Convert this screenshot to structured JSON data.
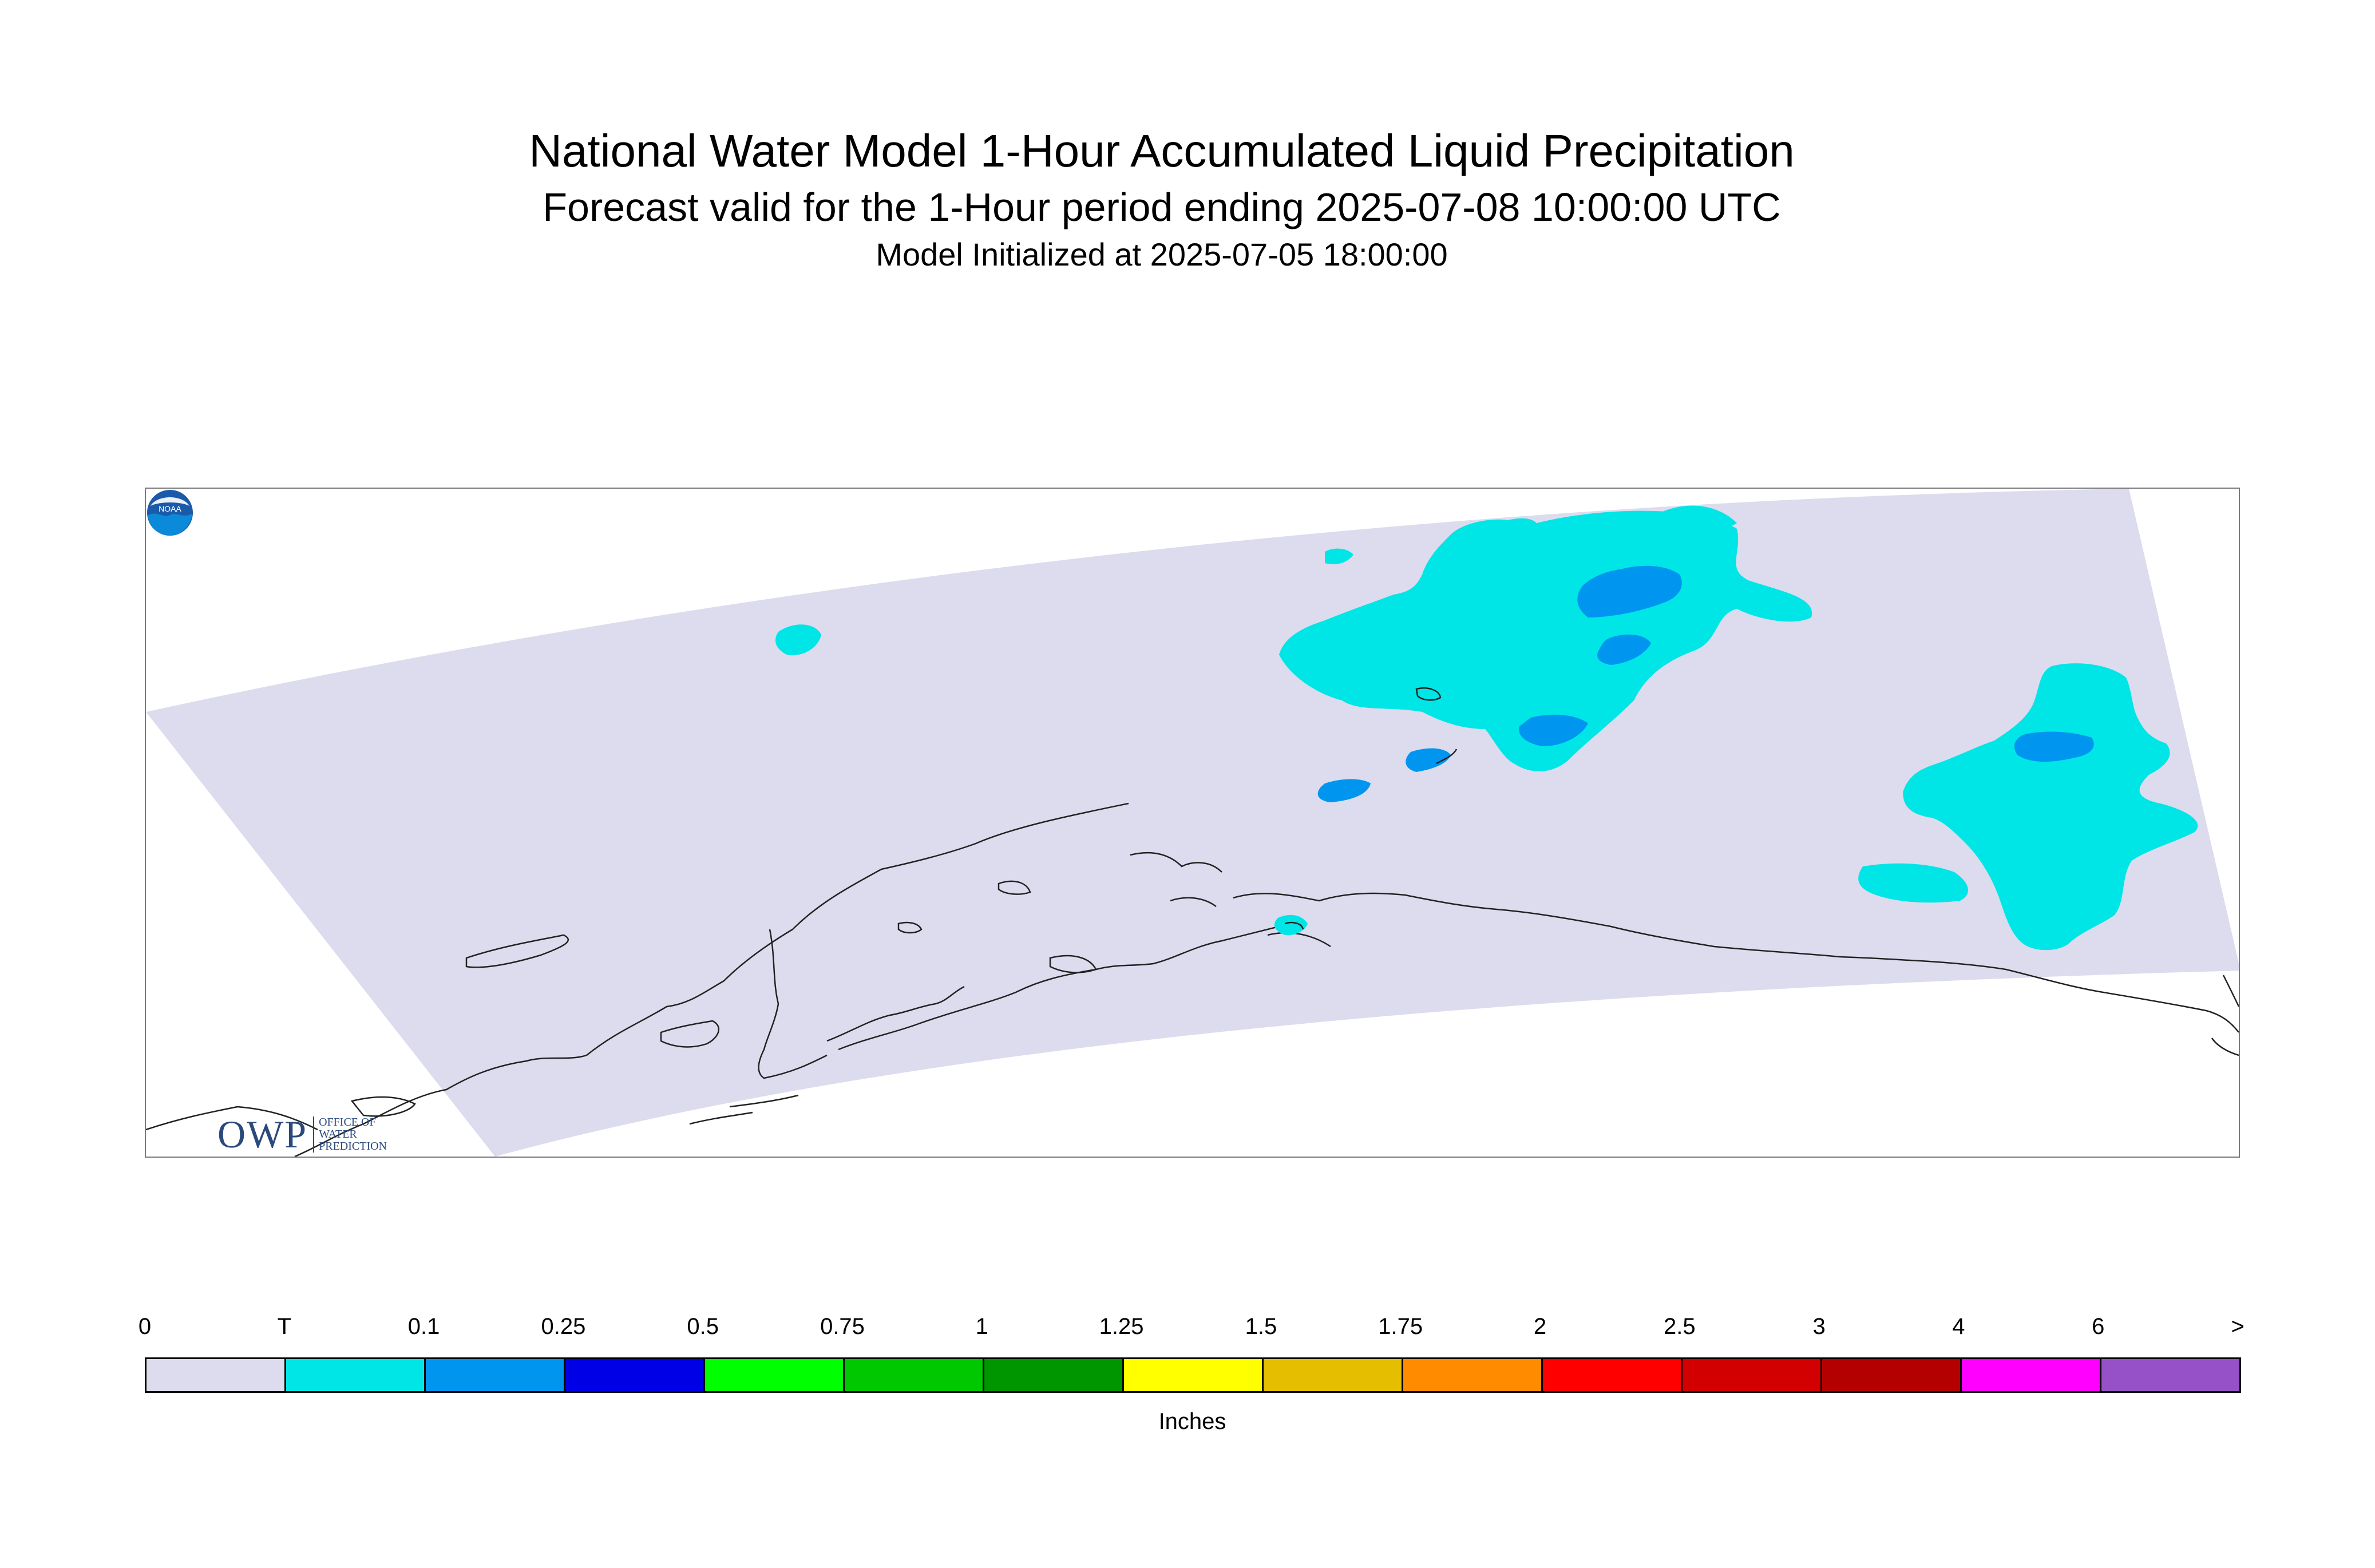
{
  "header": {
    "title": "National Water Model 1-Hour Accumulated Liquid Precipitation",
    "subtitle": "Forecast valid for the 1-Hour period ending 2025-07-08 10:00:00 UTC",
    "init": "Model Initialized at 2025-07-05 18:00:00"
  },
  "legend": {
    "labels": [
      "0",
      "T",
      "0.1",
      "0.25",
      "0.5",
      "0.75",
      "1",
      "1.25",
      "1.5",
      "1.75",
      "2",
      "2.5",
      "3",
      "4",
      "6",
      ">"
    ],
    "colors": [
      "#dcdcee",
      "#00e6e6",
      "#0096f0",
      "#0000e6",
      "#00ff00",
      "#00c800",
      "#009600",
      "#ffff00",
      "#e6be00",
      "#ff8c00",
      "#ff0000",
      "#d20000",
      "#b40000",
      "#ff00ff",
      "#9650c8"
    ],
    "units": "Inches"
  },
  "map": {
    "domain_color": "#dcdcee",
    "coast_color": "#222222",
    "trace_color": "#00e6e6",
    "light_color": "#0096f0"
  },
  "logos": {
    "owp_letters": "OWP",
    "owp_lines": [
      "OFFICE OF",
      "WATER",
      "PREDICTION"
    ],
    "noaa": "NOAA"
  }
}
